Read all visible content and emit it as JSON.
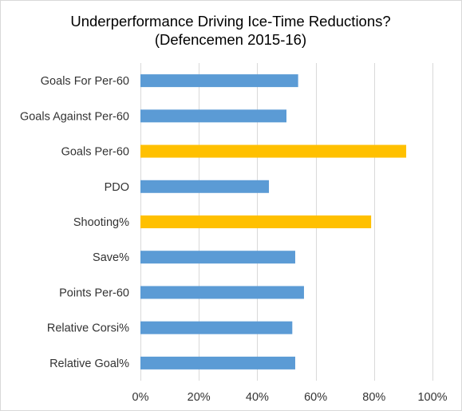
{
  "chart_data": {
    "type": "bar",
    "orientation": "horizontal",
    "title": "Underperformance Driving Ice-Time Reductions?",
    "subtitle": "(Defencemen 2015-16)",
    "xlabel": "",
    "ylabel": "",
    "categories": [
      "Goals For Per-60",
      "Goals Against Per-60",
      "Goals Per-60",
      "PDO",
      "Shooting%",
      "Save%",
      "Points Per-60",
      "Relative Corsi%",
      "Relative Goal%"
    ],
    "values": [
      0.54,
      0.5,
      0.91,
      0.44,
      0.79,
      0.53,
      0.56,
      0.52,
      0.53
    ],
    "highlighted": [
      false,
      false,
      true,
      false,
      true,
      false,
      false,
      false,
      false
    ],
    "xlim": [
      0,
      1
    ],
    "xticks": [
      0,
      0.2,
      0.4,
      0.6,
      0.8,
      1.0
    ],
    "xtick_labels": [
      "0%",
      "20%",
      "40%",
      "60%",
      "80%",
      "100%"
    ],
    "grid": "vertical",
    "legend": "none",
    "colors": {
      "default_bar": "#5b9bd5",
      "highlight_bar": "#ffc000",
      "grid": "#d9d9d9",
      "text": "#333333"
    }
  }
}
